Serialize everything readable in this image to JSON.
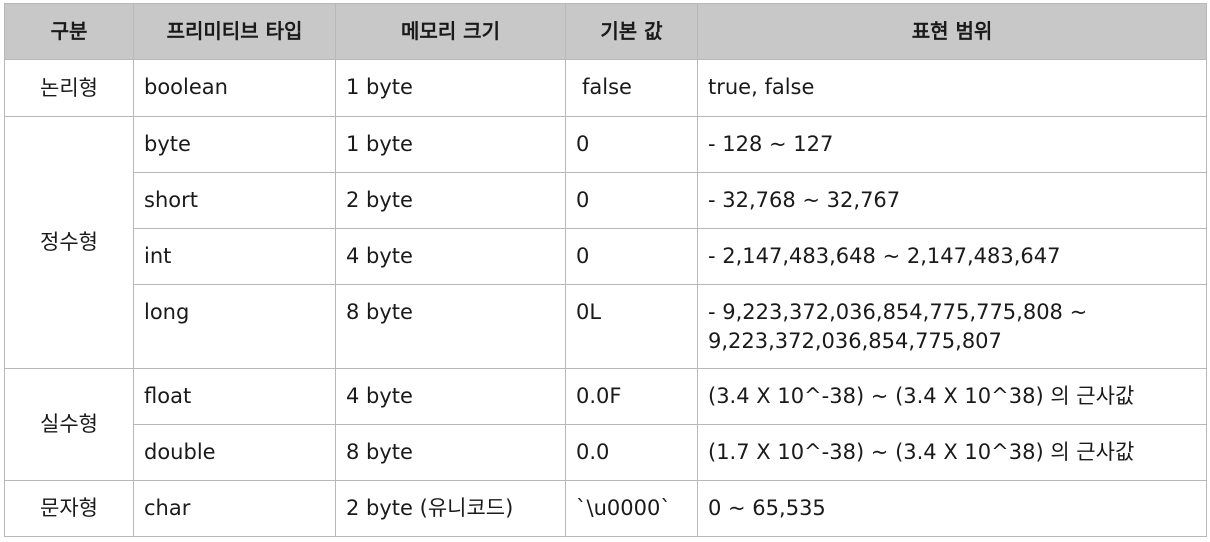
{
  "headers": {
    "category": "구분",
    "primitive_type": "프리미티브 타입",
    "memory_size": "메모리 크기",
    "default_value": "기본 값",
    "range": "표현 범위"
  },
  "groups": [
    {
      "category": "논리형",
      "rows": [
        {
          "type": "boolean",
          "size": "1 byte",
          "default": "false",
          "range": "true, false"
        }
      ]
    },
    {
      "category": "정수형",
      "rows": [
        {
          "type": "byte",
          "size": "1 byte",
          "default": "0",
          "range": "- 128 ~ 127"
        },
        {
          "type": "short",
          "size": "2 byte",
          "default": "0",
          "range": "- 32,768 ~ 32,767"
        },
        {
          "type": "int",
          "size": "4 byte",
          "default": "0",
          "range": "- 2,147,483,648 ~ 2,147,483,647"
        },
        {
          "type": "long",
          "size": "8 byte",
          "default": "0L",
          "range_line1": "- 9,223,372,036,854,775,775,808 ~",
          "range_line2": "9,223,372,036,854,775,807"
        }
      ]
    },
    {
      "category": "실수형",
      "rows": [
        {
          "type": "float",
          "size": "4 byte",
          "default": "0.0F",
          "range": "(3.4 X 10^-38) ~ (3.4 X 10^38) 의 근사값"
        },
        {
          "type": "double",
          "size": "8 byte",
          "default": "0.0",
          "range": "(1.7 X 10^-38) ~ (3.4 X 10^38) 의 근사값"
        }
      ]
    },
    {
      "category": "문자형",
      "rows": [
        {
          "type": "char",
          "size": "2 byte (유니코드)",
          "default": "`\\u0000`",
          "range": "0 ~ 65,535"
        }
      ]
    }
  ]
}
